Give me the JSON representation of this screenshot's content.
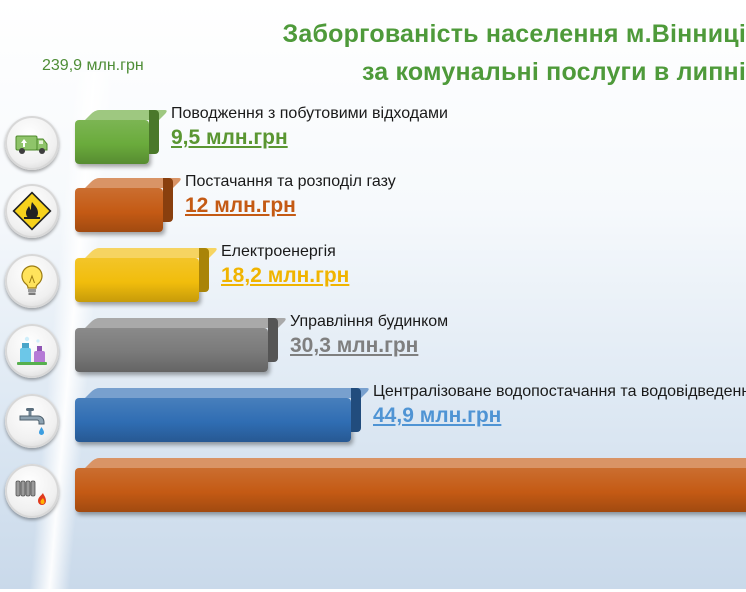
{
  "title_line1": "Заборгованість населення м.Вінниці",
  "title_line2": "за комунальні послуги в липні",
  "chart_data": {
    "type": "bar",
    "orientation": "horizontal",
    "total_label": "239,9 млн.грн",
    "unit": "млн.грн",
    "categories": [
      "Поводження з побутовими відходами",
      "Постачання та розподіл  газу",
      "Електроенергія",
      "Управління будинком",
      "Централізоване водопостачання та водовідведення",
      ""
    ],
    "values": [
      9.5,
      12,
      18.2,
      30.3,
      44.9,
      null
    ],
    "value_labels": [
      "9,5 млн.грн",
      "12 млн.грн",
      "18,2 млн.грн",
      "30,3 млн.грн",
      "44,9 млн.грн",
      ""
    ],
    "icons": [
      "garbage-truck-icon",
      "flammable-warning-icon",
      "light-bulb-icon",
      "cleaning-supplies-icon",
      "water-tap-icon",
      "radiator-icon"
    ],
    "colors": [
      "#6aab3c",
      "#c45a14",
      "#f1bd0c",
      "#7a7a7a",
      "#2f6db3",
      "#c45a14"
    ],
    "label_colors": [
      "#5a9632",
      "#c45a14",
      "#f0b400",
      "#7f7f7f",
      "#4f94d4",
      ""
    ]
  }
}
